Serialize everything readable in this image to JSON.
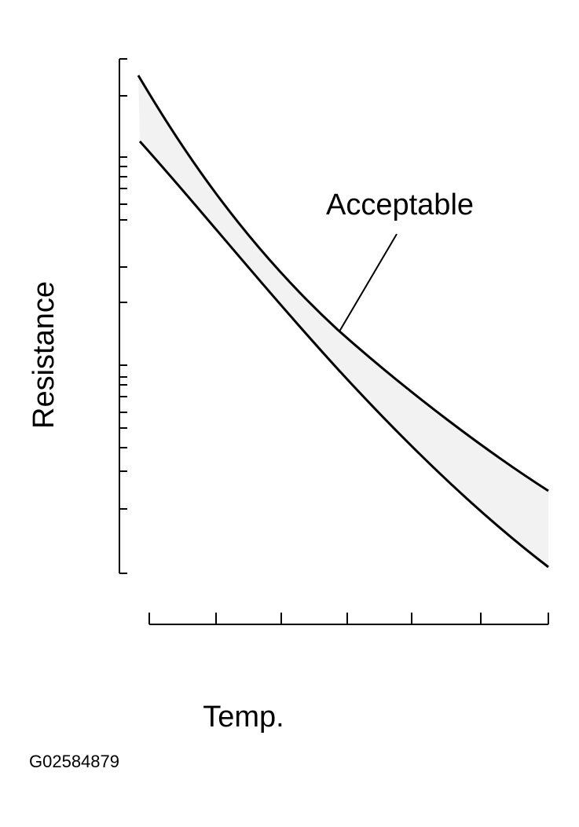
{
  "labels": {
    "curve_label": "Acceptable",
    "y_axis": "Resistance",
    "x_axis": "Temp.",
    "figure_id": "G02584879"
  }
}
